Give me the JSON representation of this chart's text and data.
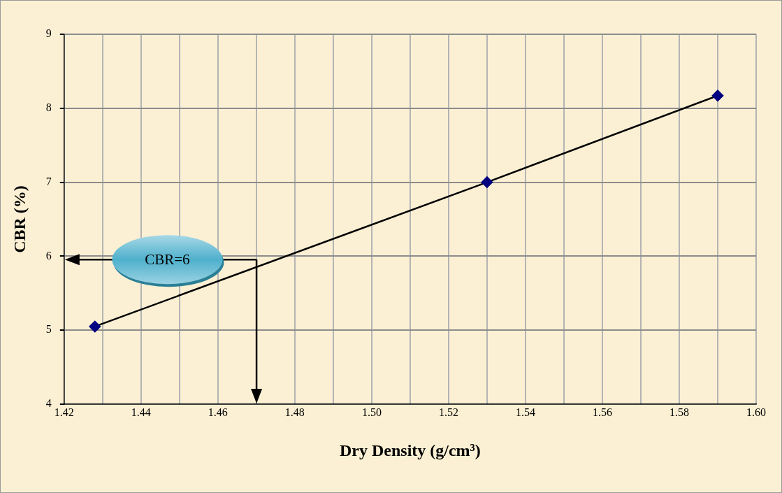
{
  "chart_data": {
    "type": "line",
    "xlabel": "Dry Density (g/cm³)",
    "ylabel": "CBR (%)",
    "x": [
      1.428,
      1.53,
      1.59
    ],
    "series": [
      {
        "color": "#000080",
        "values": [
          5.05,
          7.0,
          8.17
        ]
      }
    ],
    "xlim": [
      1.42,
      1.6
    ],
    "xticks": [
      {
        "value": 1.42,
        "label": "1.42"
      },
      {
        "value": 1.43,
        "label": null
      },
      {
        "value": 1.44,
        "label": "1.44"
      },
      {
        "value": 1.45,
        "label": null
      },
      {
        "value": 1.46,
        "label": "1.46"
      },
      {
        "value": 1.47,
        "label": null
      },
      {
        "value": 1.48,
        "label": "1.48"
      },
      {
        "value": 1.49,
        "label": null
      },
      {
        "value": 1.5,
        "label": "1.50"
      },
      {
        "value": 1.51,
        "label": null
      },
      {
        "value": 1.52,
        "label": "1.52"
      },
      {
        "value": 1.53,
        "label": null
      },
      {
        "value": 1.54,
        "label": "1.54"
      },
      {
        "value": 1.55,
        "label": null
      },
      {
        "value": 1.56,
        "label": "1.56"
      },
      {
        "value": 1.57,
        "label": null
      },
      {
        "value": 1.58,
        "label": "1.58"
      },
      {
        "value": 1.59,
        "label": null
      },
      {
        "value": 1.6,
        "label": "1.60"
      }
    ],
    "ylim": [
      4,
      9
    ],
    "yticks": [
      4,
      5,
      6,
      7,
      8,
      9
    ],
    "grid": true,
    "legend": false,
    "marker": "diamond",
    "line_style": "solid",
    "annotations": [
      "CBR=6"
    ]
  }
}
